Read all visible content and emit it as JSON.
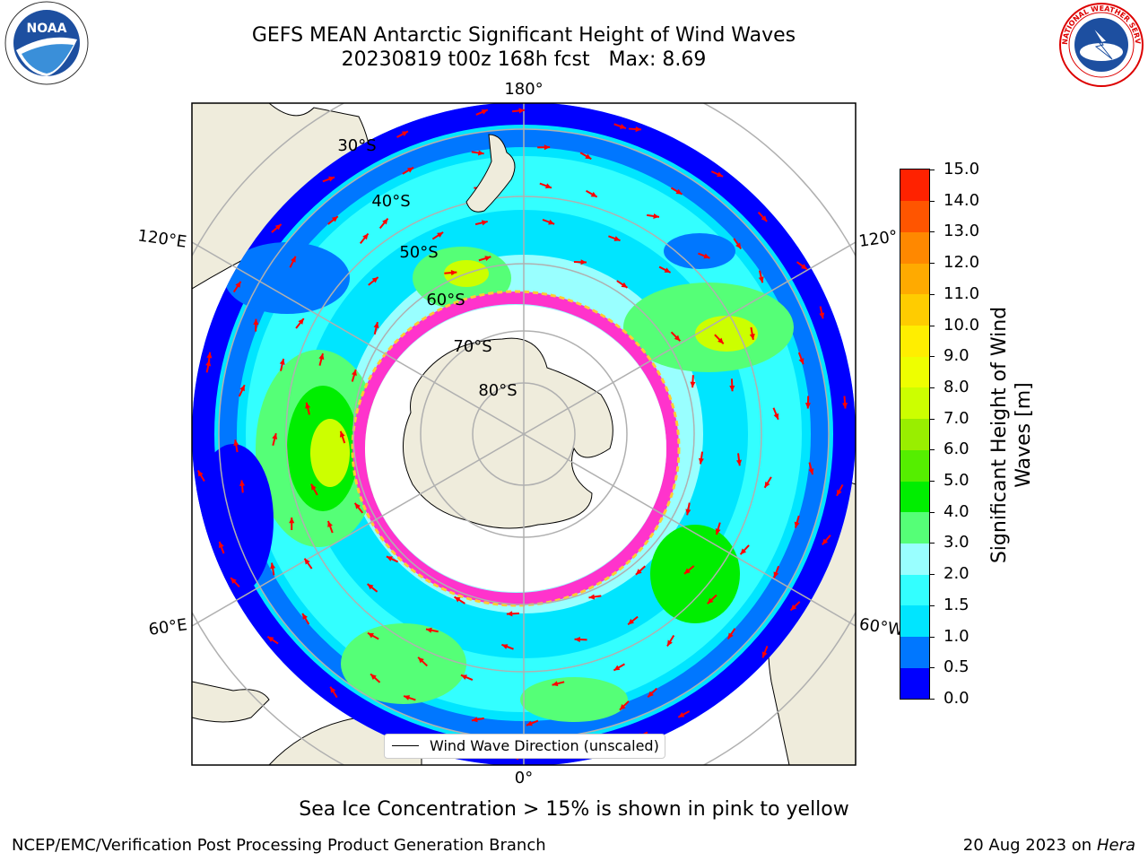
{
  "title": {
    "line1": "GEFS MEAN Antarctic Significant Height of Wind Waves",
    "line2": "20230819 t00z 168h fcst   Max: 8.69"
  },
  "logos": {
    "left_text": "NOAA",
    "left_ring_text": "NATIONAL OCEANIC AND ATMOSPHERIC ADMINISTRATION · U.S. DEPARTMENT OF COMMERCE",
    "right_ring_text": "NATIONAL WEATHER SERVICE"
  },
  "map": {
    "projection": "south polar stereographic",
    "longitude_labels": [
      "180°",
      "120°E",
      "120°",
      "60°E",
      "60°W",
      "0°"
    ],
    "latitude_labels": [
      "30°S",
      "40°S",
      "50°S",
      "60°S",
      "70°S",
      "80°S"
    ],
    "legend_text": "Wind Wave Direction (unscaled)",
    "arrow_color": "#ff0000",
    "land_color": "#efecdc",
    "ice_edge_colors": [
      "#ff33cc",
      "#ffcc33"
    ]
  },
  "colorbar": {
    "label": "Significant Height of Wind Waves [m]",
    "ticks": [
      "15.0",
      "14.0",
      "13.0",
      "12.0",
      "11.0",
      "10.0",
      "9.0",
      "8.0",
      "7.0",
      "6.0",
      "5.0",
      "4.0",
      "3.0",
      "2.0",
      "1.5",
      "1.0",
      "0.5",
      "0.0"
    ],
    "colors": [
      "#0000ff",
      "#0077ff",
      "#00e5ff",
      "#33ffff",
      "#99ffff",
      "#55ff77",
      "#00ee00",
      "#55ee00",
      "#99ee00",
      "#ccff00",
      "#eeff00",
      "#ffee00",
      "#ffcc00",
      "#ffaa00",
      "#ff8800",
      "#ff5500",
      "#ff2200"
    ]
  },
  "note": "Sea Ice Concentration > 15% is shown in pink to yellow",
  "footer": {
    "left": "NCEP/EMC/Verification Post Processing Product Generation Branch",
    "right_date": "20 Aug 2023 on",
    "right_system": "Hera"
  }
}
